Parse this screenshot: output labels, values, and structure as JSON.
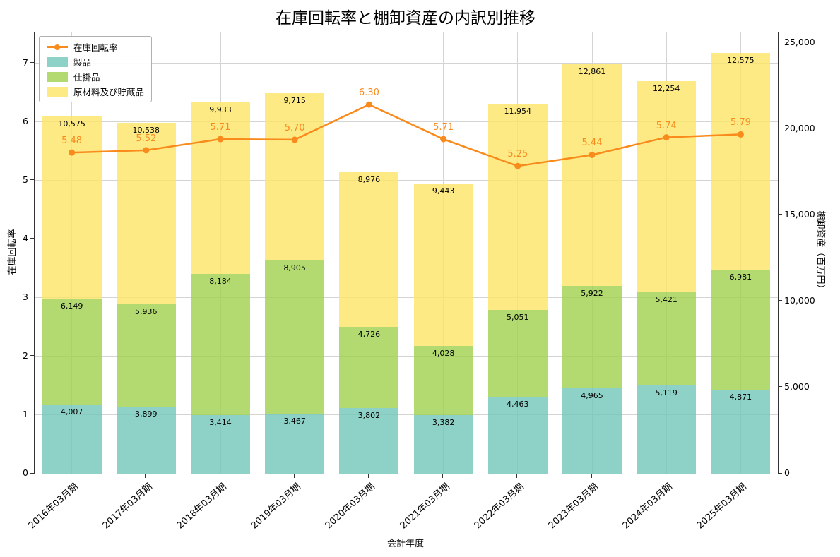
{
  "chart_data": {
    "type": "bar",
    "subtype": "stacked-bar-with-line",
    "title": "在庫回転率と棚卸資産の内訳別推移",
    "xlabel": "会計年度",
    "ylabel_left": "在庫回転率",
    "ylabel_right": "棚卸資産（百万円）",
    "categories": [
      "2016年03月期",
      "2017年03月期",
      "2018年03月期",
      "2019年03月期",
      "2020年03月期",
      "2021年03月期",
      "2022年03月期",
      "2023年03月期",
      "2024年03月期",
      "2025年03月期"
    ],
    "series": [
      {
        "name": "製品",
        "type": "bar",
        "stack": true,
        "axis": "right",
        "color": "rgba(114,198,185,0.8)",
        "values": [
          4007,
          3899,
          3414,
          3467,
          3802,
          3382,
          4463,
          4965,
          5119,
          4871
        ]
      },
      {
        "name": "仕掛品",
        "type": "bar",
        "stack": true,
        "axis": "right",
        "color": "rgba(159,209,76,0.8)",
        "values": [
          6149,
          5936,
          8184,
          8905,
          4726,
          4028,
          5051,
          5922,
          5421,
          6981
        ]
      },
      {
        "name": "原材料及び貯蔵品",
        "type": "bar",
        "stack": true,
        "axis": "right",
        "color": "rgba(253,229,102,0.8)",
        "values": [
          10575,
          10538,
          9933,
          9715,
          8976,
          9443,
          11954,
          12861,
          12254,
          12575
        ]
      },
      {
        "name": "在庫回転率",
        "type": "line",
        "axis": "left",
        "color": "#f98b1d",
        "values": [
          5.48,
          5.52,
          5.71,
          5.7,
          6.3,
          5.71,
          5.25,
          5.44,
          5.74,
          5.79
        ]
      }
    ],
    "left_axis": {
      "min": 0,
      "max": 7.53,
      "ticks": [
        0,
        1,
        2,
        3,
        4,
        5,
        6,
        7
      ]
    },
    "right_axis": {
      "min": 0,
      "max": 25600,
      "ticks": [
        0,
        5000,
        10000,
        15000,
        20000,
        25000
      ]
    },
    "grid": true,
    "legend_position": "upper left"
  }
}
